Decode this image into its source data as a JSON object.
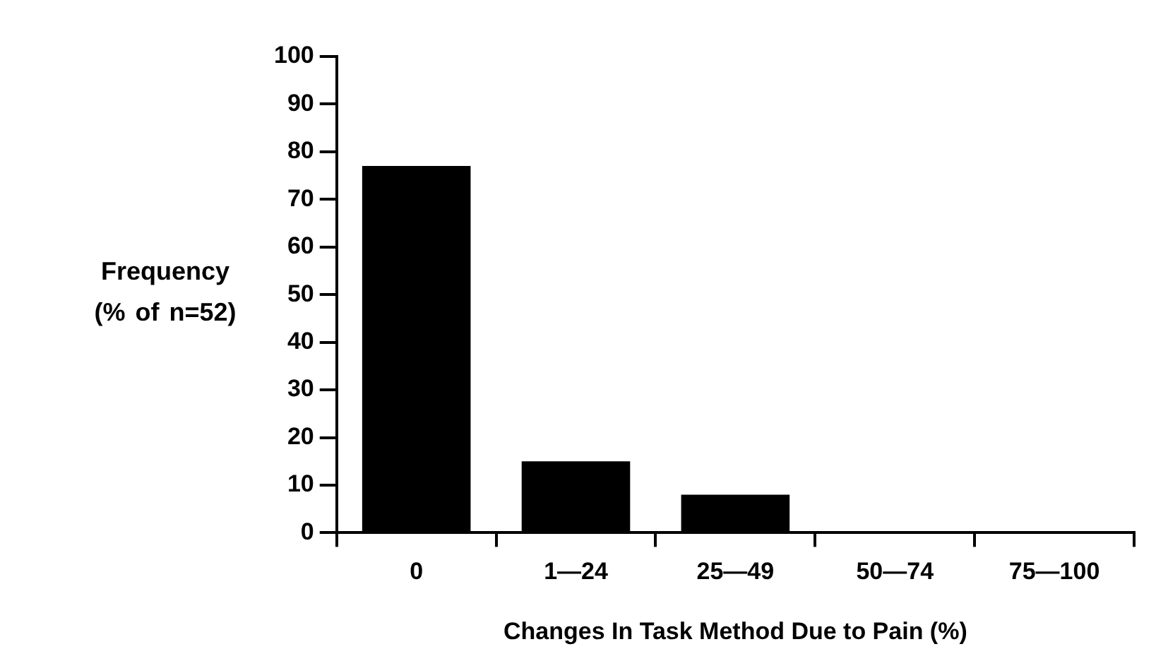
{
  "chart_data": {
    "type": "bar",
    "xlabel": "Changes In Task Method Due to Pain (%)",
    "ylabel": "Frequency (% of n=52)",
    "categories": [
      "0",
      "1—24",
      "25—49",
      "50—74",
      "75—100"
    ],
    "values": [
      77,
      15,
      8,
      0,
      0
    ],
    "color": "#000000",
    "ylim": [
      0,
      100
    ],
    "yticks": [
      0,
      10,
      20,
      30,
      40,
      50,
      60,
      70,
      80,
      90,
      100
    ],
    "legend": false
  }
}
